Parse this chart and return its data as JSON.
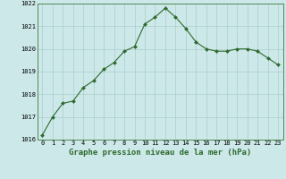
{
  "x": [
    0,
    1,
    2,
    3,
    4,
    5,
    6,
    7,
    8,
    9,
    10,
    11,
    12,
    13,
    14,
    15,
    16,
    17,
    18,
    19,
    20,
    21,
    22,
    23
  ],
  "y": [
    1016.2,
    1017.0,
    1017.6,
    1017.7,
    1018.3,
    1018.6,
    1019.1,
    1019.4,
    1019.9,
    1020.1,
    1021.1,
    1021.4,
    1021.8,
    1021.4,
    1020.9,
    1020.3,
    1020.0,
    1019.9,
    1019.9,
    1020.0,
    1020.0,
    1019.9,
    1019.6,
    1019.3
  ],
  "ylim": [
    1016,
    1022
  ],
  "xlim_min": -0.5,
  "xlim_max": 23.5,
  "yticks": [
    1016,
    1017,
    1018,
    1019,
    1020,
    1021,
    1022
  ],
  "xticks": [
    0,
    1,
    2,
    3,
    4,
    5,
    6,
    7,
    8,
    9,
    10,
    11,
    12,
    13,
    14,
    15,
    16,
    17,
    18,
    19,
    20,
    21,
    22,
    23
  ],
  "xlabel": "Graphe pression niveau de la mer (hPa)",
  "line_color": "#2d6a2d",
  "marker": "D",
  "marker_size": 2.0,
  "bg_color": "#cce8e8",
  "grid_color": "#aacece",
  "tick_fontsize": 5.0,
  "xlabel_fontsize": 6.5,
  "linewidth": 0.8
}
